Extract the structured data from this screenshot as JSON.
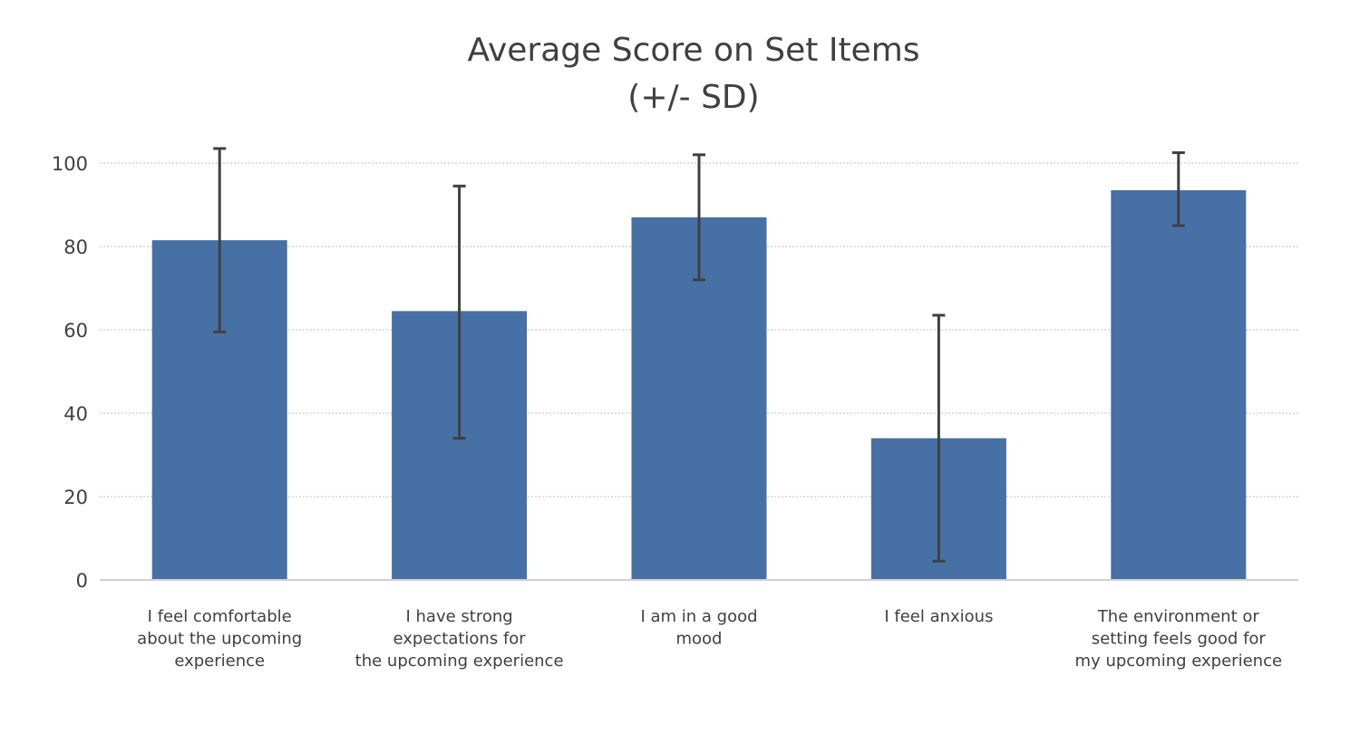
{
  "chart_data": {
    "type": "bar",
    "title": [
      "Average Score on Set Items",
      "(+/- SD)"
    ],
    "xlabel": "",
    "ylabel": "",
    "ylim": [
      0,
      100
    ],
    "yticks": [
      0,
      20,
      40,
      60,
      80,
      100
    ],
    "grid": true,
    "legend": "none",
    "bar_color": "#4770a5",
    "error_color": "#404040",
    "categories": [
      [
        "I feel comfortable",
        "about the upcoming",
        "experience"
      ],
      [
        "I have strong",
        "expectations for",
        "the upcoming experience"
      ],
      [
        "I am in a good",
        "mood"
      ],
      [
        "I feel anxious"
      ],
      [
        "The environment or",
        "setting feels good for",
        "my upcoming experience"
      ]
    ],
    "values": [
      81.5,
      64.5,
      87.0,
      34.0,
      93.5
    ],
    "error_low": [
      59.5,
      34.0,
      72.0,
      4.5,
      85.0
    ],
    "error_high": [
      103.5,
      94.5,
      102.0,
      63.5,
      102.5
    ]
  }
}
